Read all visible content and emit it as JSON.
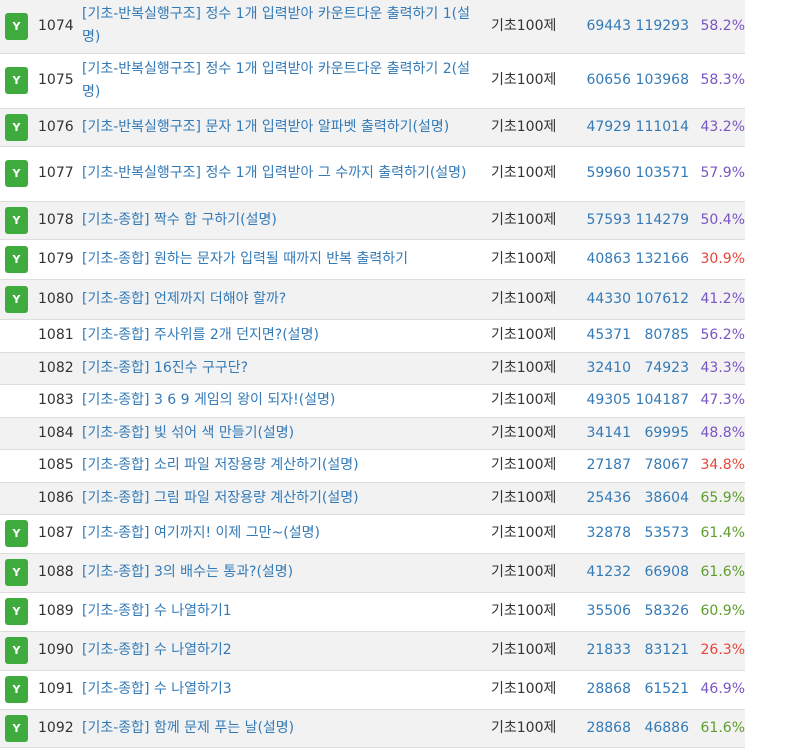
{
  "colors": {
    "solved_badge": "#3fab3f",
    "link": "#337ab7",
    "rate_purple": "#7a55c4",
    "rate_red": "#e8453c",
    "rate_green": "#5e9e2c"
  },
  "rows": [
    {
      "solved": true,
      "badge": "Y",
      "id": "1074",
      "title": "[기초-반복실행구조] 정수 1개 입력받아 카운트다운 출력하기 1(설명)",
      "category": "기초100제",
      "submissions": "69443",
      "total": "119293",
      "rate": "58.2%",
      "rate_color": "purple"
    },
    {
      "solved": true,
      "badge": "Y",
      "id": "1075",
      "title": "[기초-반복실행구조] 정수 1개 입력받아 카운트다운 출력하기 2(설명)",
      "category": "기초100제",
      "submissions": "60656",
      "total": "103968",
      "rate": "58.3%",
      "rate_color": "purple"
    },
    {
      "solved": true,
      "badge": "Y",
      "id": "1076",
      "title": "[기초-반복실행구조] 문자 1개 입력받아 알파벳 출력하기(설명)",
      "category": "기초100제",
      "submissions": "47929",
      "total": "111014",
      "rate": "43.2%",
      "rate_color": "purple"
    },
    {
      "solved": true,
      "badge": "Y",
      "id": "1077",
      "title": "[기초-반복실행구조] 정수 1개 입력받아 그 수까지 출력하기(설명)",
      "category": "기초100제",
      "submissions": "59960",
      "total": "103571",
      "rate": "57.9%",
      "rate_color": "purple"
    },
    {
      "solved": true,
      "badge": "Y",
      "id": "1078",
      "title": "[기초-종합] 짝수 합 구하기(설명)",
      "category": "기초100제",
      "submissions": "57593",
      "total": "114279",
      "rate": "50.4%",
      "rate_color": "purple"
    },
    {
      "solved": true,
      "badge": "Y",
      "id": "1079",
      "title": "[기초-종합] 원하는 문자가 입력될 때까지 반복 출력하기",
      "category": "기초100제",
      "submissions": "40863",
      "total": "132166",
      "rate": "30.9%",
      "rate_color": "red"
    },
    {
      "solved": true,
      "badge": "Y",
      "id": "1080",
      "title": "[기초-종합] 언제까지 더해야 할까?",
      "category": "기초100제",
      "submissions": "44330",
      "total": "107612",
      "rate": "41.2%",
      "rate_color": "purple"
    },
    {
      "solved": false,
      "badge": "",
      "id": "1081",
      "title": "[기초-종합] 주사위를 2개 던지면?(설명)",
      "category": "기초100제",
      "submissions": "45371",
      "total": "80785",
      "rate": "56.2%",
      "rate_color": "purple"
    },
    {
      "solved": false,
      "badge": "",
      "id": "1082",
      "title": "[기초-종합] 16진수 구구단?",
      "category": "기초100제",
      "submissions": "32410",
      "total": "74923",
      "rate": "43.3%",
      "rate_color": "purple"
    },
    {
      "solved": false,
      "badge": "",
      "id": "1083",
      "title": "[기초-종합] 3 6 9 게임의 왕이 되자!(설명)",
      "category": "기초100제",
      "submissions": "49305",
      "total": "104187",
      "rate": "47.3%",
      "rate_color": "purple"
    },
    {
      "solved": false,
      "badge": "",
      "id": "1084",
      "title": "[기초-종합] 빛 섞어 색 만들기(설명)",
      "category": "기초100제",
      "submissions": "34141",
      "total": "69995",
      "rate": "48.8%",
      "rate_color": "purple"
    },
    {
      "solved": false,
      "badge": "",
      "id": "1085",
      "title": "[기초-종합] 소리 파일 저장용량 계산하기(설명)",
      "category": "기초100제",
      "submissions": "27187",
      "total": "78067",
      "rate": "34.8%",
      "rate_color": "red"
    },
    {
      "solved": false,
      "badge": "",
      "id": "1086",
      "title": "[기초-종합] 그림 파일 저장용량 계산하기(설명)",
      "category": "기초100제",
      "submissions": "25436",
      "total": "38604",
      "rate": "65.9%",
      "rate_color": "green"
    },
    {
      "solved": true,
      "badge": "Y",
      "id": "1087",
      "title": "[기초-종합] 여기까지! 이제 그만~(설명)",
      "category": "기초100제",
      "submissions": "32878",
      "total": "53573",
      "rate": "61.4%",
      "rate_color": "green"
    },
    {
      "solved": true,
      "badge": "Y",
      "id": "1088",
      "title": "[기초-종합] 3의 배수는 통과?(설명)",
      "category": "기초100제",
      "submissions": "41232",
      "total": "66908",
      "rate": "61.6%",
      "rate_color": "green"
    },
    {
      "solved": true,
      "badge": "Y",
      "id": "1089",
      "title": "[기초-종합] 수 나열하기1",
      "category": "기초100제",
      "submissions": "35506",
      "total": "58326",
      "rate": "60.9%",
      "rate_color": "green"
    },
    {
      "solved": true,
      "badge": "Y",
      "id": "1090",
      "title": "[기초-종합] 수 나열하기2",
      "category": "기초100제",
      "submissions": "21833",
      "total": "83121",
      "rate": "26.3%",
      "rate_color": "red"
    },
    {
      "solved": true,
      "badge": "Y",
      "id": "1091",
      "title": "[기초-종합] 수 나열하기3",
      "category": "기초100제",
      "submissions": "28868",
      "total": "61521",
      "rate": "46.9%",
      "rate_color": "purple"
    },
    {
      "solved": true,
      "badge": "Y",
      "id": "1092",
      "title": "[기초-종합] 함께 문제 푸는 날(설명)",
      "category": "기초100제",
      "submissions": "28868",
      "total": "46886",
      "rate": "61.6%",
      "rate_color": "green"
    }
  ]
}
